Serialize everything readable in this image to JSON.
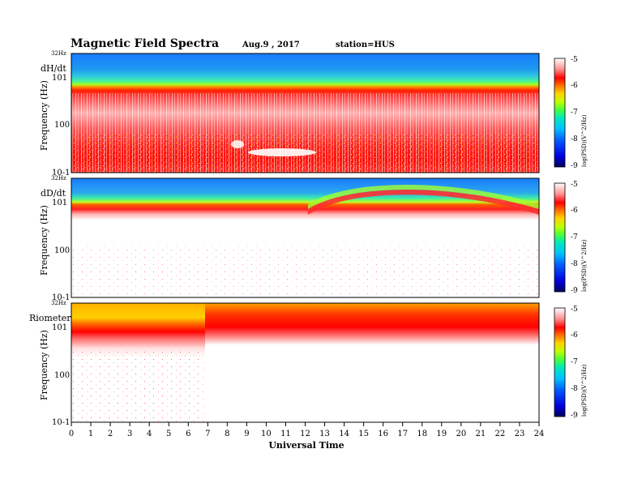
{
  "header": {
    "title": "Magnetic  Field  Spectra",
    "date": "Aug.9  , 2017",
    "station": "station=HUS"
  },
  "chart_data": [
    {
      "type": "heatmap",
      "panel_label": "dH/dt",
      "ylabel": "Frequency  (Hz)",
      "top_label": "32Hz",
      "x": [
        0,
        24
      ],
      "y_ticks": [
        "10-1",
        "100",
        "101"
      ],
      "colorbar": {
        "label": "log(PSD)(V^2/Hz)",
        "range": [
          -9,
          -5
        ],
        "ticks": [
          "-5",
          "-6",
          "-7",
          "-8",
          "-9"
        ]
      }
    },
    {
      "type": "heatmap",
      "panel_label": "dD/dt",
      "ylabel": "Frequency  (Hz)",
      "top_label": "32Hz",
      "x": [
        0,
        24
      ],
      "y_ticks": [
        "10-1",
        "100",
        "101"
      ],
      "colorbar": {
        "label": "log(PSD)(V^2/Hz)",
        "range": [
          -9,
          -5
        ],
        "ticks": [
          "-5",
          "-6",
          "-7",
          "-8",
          "-9"
        ]
      }
    },
    {
      "type": "heatmap",
      "panel_label": "Riometer",
      "ylabel": "Frequency  (Hz)",
      "top_label": "32Hz",
      "x": [
        0,
        24
      ],
      "y_ticks": [
        "10-1",
        "100",
        "101"
      ],
      "colorbar": {
        "label": "log(PSD)(V^2/Hz)",
        "range": [
          -9,
          -5
        ],
        "ticks": [
          "-5",
          "-6",
          "-7",
          "-8",
          "-9"
        ]
      }
    }
  ],
  "x_axis": {
    "label": "Universal Time",
    "ticks": [
      "0",
      "1",
      "2",
      "3",
      "4",
      "5",
      "6",
      "7",
      "8",
      "9",
      "10",
      "11",
      "12",
      "13",
      "14",
      "15",
      "16",
      "17",
      "18",
      "19",
      "20",
      "21",
      "22",
      "23",
      "24"
    ]
  },
  "colors": {
    "background": "#ffffff",
    "scale": [
      "#000090",
      "#0000ff",
      "#0090ff",
      "#00e0ff",
      "#00ff80",
      "#80ff00",
      "#ffff00",
      "#ff8000",
      "#ff0000",
      "#ffb0b0",
      "#ffffff"
    ]
  }
}
